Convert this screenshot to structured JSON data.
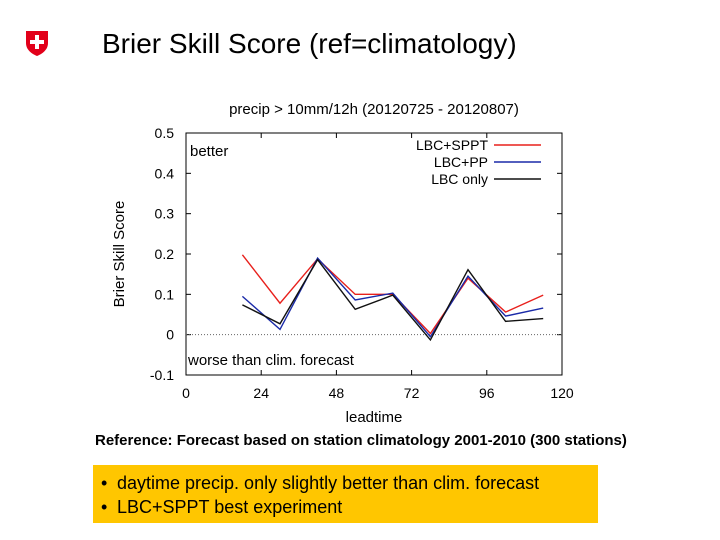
{
  "slide": {
    "title": "Brier Skill Score (ref=climatology)",
    "reference": "Reference: Forecast based on station climatology 2001-2010 (300 stations)",
    "bullets": [
      "daytime precip. only slightly better than clim. forecast",
      "LBC+SPPT best experiment"
    ],
    "logo_icon": "swiss-cross-icon",
    "logo_color": "#e2001a",
    "summary_color": "#ffc600"
  },
  "chart_data": {
    "type": "line",
    "title": "precip > 10mm/12h (20120725 - 20120807)",
    "xlabel": "leadtime",
    "ylabel": "Brier Skill Score",
    "xlim": [
      0,
      120
    ],
    "ylim": [
      -0.1,
      0.5
    ],
    "xticks": [
      0,
      24,
      48,
      72,
      96,
      120
    ],
    "yticks": [
      -0.1,
      0,
      0.1,
      0.2,
      0.3,
      0.4,
      0.5
    ],
    "reference_line": 0,
    "annotations": {
      "better": "better",
      "worse": "worse than clim. forecast"
    },
    "x": [
      18,
      30,
      42,
      54,
      66,
      78,
      90,
      102,
      114
    ],
    "series": [
      {
        "name": "LBC+SPPT",
        "color": "#e8201c",
        "values": [
          0.198,
          0.078,
          0.188,
          0.1,
          0.1,
          0.003,
          0.14,
          0.056,
          0.098
        ]
      },
      {
        "name": "LBC+PP",
        "color": "#1a2aa8",
        "values": [
          0.095,
          0.013,
          0.19,
          0.086,
          0.103,
          -0.005,
          0.145,
          0.046,
          0.066
        ]
      },
      {
        "name": "LBC only",
        "color": "#111111",
        "values": [
          0.074,
          0.027,
          0.186,
          0.063,
          0.098,
          -0.013,
          0.161,
          0.033,
          0.04
        ]
      }
    ]
  }
}
